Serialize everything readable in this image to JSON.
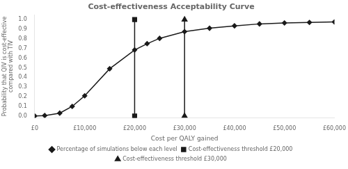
{
  "chart_data": {
    "type": "line",
    "title": "Cost-effectiveness Acceptability Curve",
    "xlabel": "Cost per QALY gained",
    "ylabel": "Probability that QIV is cost-effective\ncompared with TIV",
    "xlim": [
      0,
      60000
    ],
    "ylim": [
      -0.02,
      1.05
    ],
    "xticks": [
      {
        "value": 0,
        "label": "£0"
      },
      {
        "value": 10000,
        "label": "£10,000"
      },
      {
        "value": 20000,
        "label": "£20,000"
      },
      {
        "value": 30000,
        "label": "£30,000"
      },
      {
        "value": 40000,
        "label": "£40,000"
      },
      {
        "value": 50000,
        "label": "£50,000"
      },
      {
        "value": 60000,
        "label": "£60,000"
      }
    ],
    "yticks": [
      {
        "value": 0,
        "label": "0.0"
      },
      0.1,
      0.2,
      0.3,
      0.4,
      0.5,
      0.6,
      0.7,
      0.8,
      0.9,
      {
        "value": 1,
        "label": "1.0"
      }
    ],
    "grid": false,
    "legend": "bottom",
    "series": [
      {
        "name": "Percentage of simulations below each level",
        "color": "#1a1a1a",
        "marker": "diamond",
        "line_style": "solid",
        "x": [
          0,
          2000,
          5000,
          7500,
          10000,
          15000,
          20000,
          22500,
          25000,
          30000,
          35000,
          40000,
          45000,
          50000,
          55000,
          60000
        ],
        "values": [
          0,
          0.005,
          0.03,
          0.1,
          0.21,
          0.49,
          0.685,
          0.75,
          0.805,
          0.875,
          0.91,
          0.935,
          0.955,
          0.965,
          0.97,
          0.975
        ]
      },
      {
        "name": "Cost-effectiveness threshold £20,000",
        "color": "#1a1a1a",
        "marker": "square",
        "line_style": "solid",
        "x": [
          20000,
          20000
        ],
        "values": [
          0.0,
          1.0
        ]
      },
      {
        "name": "Cost-effectiveness threshold £30,000",
        "color": "#1a1a1a",
        "marker": "triangle",
        "line_style": "solid",
        "x": [
          30000,
          30000
        ],
        "values": [
          0.0,
          1.0
        ]
      }
    ]
  }
}
